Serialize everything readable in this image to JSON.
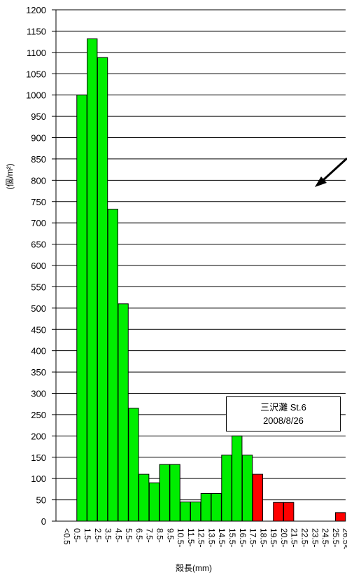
{
  "chart_data": {
    "type": "bar",
    "title": "",
    "xlabel": "殻長(mm)",
    "ylabel": "(個/m²)",
    "ylim": [
      0,
      1200
    ],
    "yticks": [
      0,
      50,
      100,
      150,
      200,
      250,
      300,
      350,
      400,
      450,
      500,
      550,
      600,
      650,
      700,
      750,
      800,
      850,
      900,
      950,
      1000,
      1050,
      1100,
      1150,
      1200
    ],
    "grid": true,
    "categories": [
      "<0.5",
      "0.5-",
      "1.5-",
      "2.5-",
      "3.5-",
      "4.5-",
      "5.5-",
      "6.5-",
      "7.5-",
      "8.5-",
      "9.5-",
      "10.5-",
      "11.5-",
      "12.5-",
      "13.5-",
      "14.5-",
      "15.5-",
      "16.5-",
      "17.5-",
      "18.5-",
      "19.5-",
      "20.5-",
      "21.5-",
      "22.5-",
      "23.5-",
      "24.5-",
      "25.5-",
      "26.5<"
    ],
    "values": [
      0,
      0,
      1000,
      1132,
      1088,
      732,
      510,
      265,
      110,
      90,
      133,
      133,
      45,
      45,
      65,
      65,
      155,
      200,
      155,
      110,
      0,
      44,
      44,
      0,
      0,
      0,
      0,
      20
    ],
    "bar_colors": [
      "#00ee00",
      "#00ee00",
      "#00ee00",
      "#00ee00",
      "#00ee00",
      "#00ee00",
      "#00ee00",
      "#00ee00",
      "#00ee00",
      "#00ee00",
      "#00ee00",
      "#00ee00",
      "#00ee00",
      "#00ee00",
      "#00ee00",
      "#00ee00",
      "#00ee00",
      "#00ee00",
      "#00ee00",
      "#ff0000",
      "#ff0000",
      "#ff0000",
      "#ff0000",
      "#ff0000",
      "#ff0000",
      "#ff0000",
      "#ff0000",
      "#ff0000"
    ],
    "annotation": {
      "line1": "三沢灘 St.6",
      "line2": "2008/8/26"
    }
  }
}
